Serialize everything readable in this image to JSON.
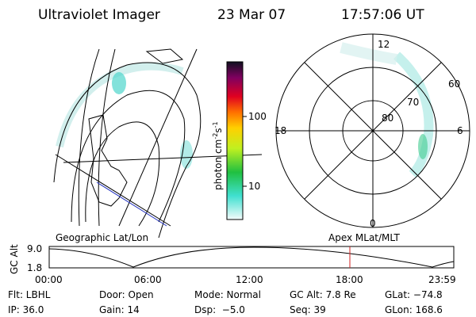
{
  "header": {
    "title": "Ultraviolet Imager",
    "date": "23 Mar 07",
    "time": "17:57:06 UT"
  },
  "polar_plot": {
    "mlt_labels": [
      "12",
      "18",
      "6",
      "0"
    ],
    "lat_labels": [
      "60",
      "70",
      "80"
    ]
  },
  "colorbar": {
    "label": [
      "photon cm",
      "-2",
      "s",
      "-1"
    ],
    "ticks": [
      "100",
      "10"
    ]
  },
  "timeline": {
    "y_label": "GC Alt",
    "y_ticks": [
      "9.0",
      "1.8"
    ],
    "left_title": "Geographic Lat/Lon",
    "right_title": "Apex MLat/MLT",
    "x_ticks": [
      "00:00",
      "06:00",
      "12:00",
      "18:00",
      "23:59"
    ]
  },
  "footer": {
    "rows": [
      [
        "Flt: LBHL",
        "Door: Open",
        "Mode: Normal",
        "GC Alt: 7.8 Re",
        "GLat: −74.8"
      ],
      [
        "IP: 36.0",
        "Gain: 14",
        "Dsp:  −5.0",
        "Seq: 39",
        "GLon: 168.6"
      ]
    ]
  }
}
